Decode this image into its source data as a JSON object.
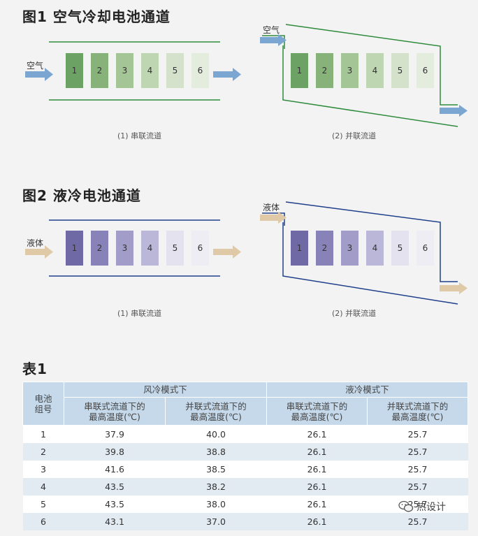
{
  "fig1": {
    "title": "图1  空气冷却电池通道",
    "inlet_label_series": "空气",
    "inlet_label_parallel": "空气",
    "caption_series": "(1) 串联流道",
    "caption_parallel": "(2) 并联流道",
    "cells": [
      "1",
      "2",
      "3",
      "4",
      "5",
      "6"
    ],
    "cell_colors": [
      "#6da265",
      "#87b27a",
      "#a4c596",
      "#bfd6b2",
      "#d4e2cb",
      "#e3ecdd"
    ],
    "line_color": "#2e8b3c",
    "arrow_color": "#7ba6d2"
  },
  "fig2": {
    "title": "图2  液冷电池通道",
    "inlet_label_series": "液体",
    "inlet_label_parallel": "液体",
    "caption_series": "(1) 串联流道",
    "caption_parallel": "(2) 并联流道",
    "cells": [
      "1",
      "2",
      "3",
      "4",
      "5",
      "6"
    ],
    "cell_colors": [
      "#6f6aa6",
      "#8782b8",
      "#a19dc8",
      "#bab7d8",
      "#e3e2ee",
      "#eeedf4"
    ],
    "line_color": "#1f3f8a",
    "arrow_color": "#e0c9a6"
  },
  "table": {
    "title": "表1",
    "group_header": "电池\n组号",
    "air_mode": "风冷模式下",
    "liquid_mode": "液冷模式下",
    "sub_series": "串联式流道下的\n最高温度(℃)",
    "sub_parallel": "并联式流道下的\n最高温度(℃)",
    "rows": [
      [
        "1",
        "37.9",
        "40.0",
        "26.1",
        "25.7"
      ],
      [
        "2",
        "39.8",
        "38.8",
        "26.1",
        "25.7"
      ],
      [
        "3",
        "41.6",
        "38.5",
        "26.1",
        "25.7"
      ],
      [
        "4",
        "43.5",
        "38.2",
        "26.1",
        "25.7"
      ],
      [
        "5",
        "43.5",
        "38.0",
        "26.1",
        "25.7"
      ],
      [
        "6",
        "43.1",
        "37.0",
        "26.1",
        "25.7"
      ]
    ]
  },
  "watermark": "热设计",
  "watermark_icon": "wechat-icon"
}
